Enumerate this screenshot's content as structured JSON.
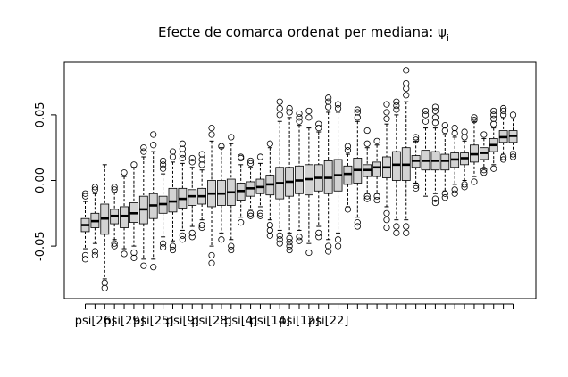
{
  "chart_data": {
    "type": "boxplot",
    "title": "Efecte de comarca ordenat per mediana:  ψ",
    "title_subscript": "i",
    "xlabel": "",
    "ylabel": "",
    "ylim": [
      -0.09,
      0.09
    ],
    "yticks": [
      -0.05,
      0.0,
      0.05
    ],
    "ytick_labels": [
      "-0.05",
      "0.00",
      "0.05"
    ],
    "x_tick_labels": [
      "psi[26]",
      "psi[29]",
      "psi[25]",
      "psi[9]",
      "psi[28]",
      "psi[4]",
      "psi[14]",
      "psi[12]",
      "psi[22]"
    ],
    "x_tick_label_positions": [
      1,
      4,
      7,
      10,
      13,
      16,
      19,
      22,
      25
    ],
    "box_fill": "#d3d3d3",
    "boxes": [
      {
        "q1": -0.039,
        "median": -0.034,
        "q3": -0.029,
        "lo": -0.052,
        "hi": -0.016,
        "out": [
          -0.057,
          -0.06,
          -0.012,
          -0.01
        ]
      },
      {
        "q1": -0.036,
        "median": -0.031,
        "q3": -0.025,
        "lo": -0.048,
        "hi": -0.01,
        "out": [
          -0.054,
          -0.057,
          -0.007,
          -0.005
        ]
      },
      {
        "q1": -0.041,
        "median": -0.029,
        "q3": -0.018,
        "lo": -0.075,
        "hi": 0.012,
        "out": [
          -0.082,
          -0.078
        ]
      },
      {
        "q1": -0.033,
        "median": -0.027,
        "q3": -0.022,
        "lo": -0.045,
        "hi": -0.009,
        "out": [
          -0.048,
          -0.05,
          -0.007,
          -0.005
        ]
      },
      {
        "q1": -0.036,
        "median": -0.027,
        "q3": -0.02,
        "lo": -0.052,
        "hi": 0.003,
        "out": [
          -0.056,
          0.006
        ]
      },
      {
        "q1": -0.032,
        "median": -0.025,
        "q3": -0.017,
        "lo": -0.05,
        "hi": 0.01,
        "out": [
          -0.055,
          -0.059,
          0.012
        ]
      },
      {
        "q1": -0.033,
        "median": -0.022,
        "q3": -0.012,
        "lo": -0.06,
        "hi": 0.018,
        "out": [
          -0.065,
          0.022,
          0.025
        ]
      },
      {
        "q1": -0.029,
        "median": -0.019,
        "q3": -0.01,
        "lo": -0.06,
        "hi": 0.022,
        "out": [
          -0.066,
          0.027,
          0.035
        ]
      },
      {
        "q1": -0.025,
        "median": -0.018,
        "q3": -0.012,
        "lo": -0.043,
        "hi": 0.005,
        "out": [
          -0.048,
          -0.051,
          0.009,
          0.012,
          0.015
        ]
      },
      {
        "q1": -0.024,
        "median": -0.016,
        "q3": -0.006,
        "lo": -0.046,
        "hi": 0.014,
        "out": [
          -0.05,
          -0.053,
          0.018,
          0.022
        ]
      },
      {
        "q1": -0.021,
        "median": -0.014,
        "q3": -0.006,
        "lo": -0.038,
        "hi": 0.013,
        "out": [
          -0.042,
          -0.045,
          0.017,
          0.02,
          0.024,
          0.028
        ]
      },
      {
        "q1": -0.019,
        "median": -0.012,
        "q3": -0.007,
        "lo": -0.035,
        "hi": 0.01,
        "out": [
          -0.04,
          -0.043,
          0.014,
          0.017
        ]
      },
      {
        "q1": -0.018,
        "median": -0.012,
        "q3": -0.006,
        "lo": -0.03,
        "hi": 0.008,
        "out": [
          -0.034,
          -0.036,
          0.012,
          0.016,
          0.02
        ]
      },
      {
        "q1": -0.02,
        "median": -0.01,
        "q3": 0.0,
        "lo": -0.05,
        "hi": 0.03,
        "out": [
          -0.057,
          -0.063,
          0.035,
          0.04
        ]
      },
      {
        "q1": -0.019,
        "median": -0.01,
        "q3": 0.0,
        "lo": -0.04,
        "hi": 0.025,
        "out": [
          -0.045,
          0.026
        ]
      },
      {
        "q1": -0.019,
        "median": -0.009,
        "q3": 0.001,
        "lo": -0.045,
        "hi": 0.028,
        "out": [
          -0.05,
          -0.053,
          0.033
        ]
      },
      {
        "q1": -0.015,
        "median": -0.008,
        "q3": -0.002,
        "lo": -0.028,
        "hi": 0.012,
        "out": [
          -0.032,
          0.017,
          0.018
        ]
      },
      {
        "q1": -0.012,
        "median": -0.006,
        "q3": -0.001,
        "lo": -0.022,
        "hi": 0.01,
        "out": [
          -0.025,
          -0.027,
          0.013,
          0.015
        ]
      },
      {
        "q1": -0.01,
        "median": -0.005,
        "q3": 0.001,
        "lo": -0.02,
        "hi": 0.013,
        "out": [
          -0.025,
          -0.027,
          0.018
        ]
      },
      {
        "q1": -0.011,
        "median": -0.003,
        "q3": 0.004,
        "lo": -0.03,
        "hi": 0.025,
        "out": [
          -0.034,
          -0.038,
          -0.042,
          0.028
        ]
      },
      {
        "q1": -0.014,
        "median": -0.002,
        "q3": 0.01,
        "lo": -0.038,
        "hi": 0.045,
        "out": [
          -0.042,
          -0.045,
          -0.048,
          0.05,
          0.055,
          0.06
        ]
      },
      {
        "q1": -0.012,
        "median": -0.001,
        "q3": 0.01,
        "lo": -0.04,
        "hi": 0.048,
        "out": [
          -0.044,
          -0.047,
          -0.05,
          -0.053,
          0.052,
          0.055
        ]
      },
      {
        "q1": -0.01,
        "median": 0.0,
        "q3": 0.011,
        "lo": -0.038,
        "hi": 0.042,
        "out": [
          -0.043,
          -0.046,
          0.045,
          0.048,
          0.051
        ]
      },
      {
        "q1": -0.011,
        "median": 0.001,
        "q3": 0.012,
        "lo": -0.048,
        "hi": 0.04,
        "out": [
          -0.055,
          0.048,
          0.053
        ]
      },
      {
        "q1": -0.008,
        "median": 0.002,
        "q3": 0.012,
        "lo": -0.035,
        "hi": 0.037,
        "out": [
          -0.04,
          -0.043,
          0.04,
          0.043
        ]
      },
      {
        "q1": -0.01,
        "median": 0.002,
        "q3": 0.015,
        "lo": -0.045,
        "hi": 0.052,
        "out": [
          -0.05,
          -0.054,
          0.056,
          0.06,
          0.063
        ]
      },
      {
        "q1": -0.008,
        "median": 0.004,
        "q3": 0.016,
        "lo": -0.04,
        "hi": 0.052,
        "out": [
          -0.045,
          -0.05,
          0.055,
          0.058
        ]
      },
      {
        "q1": -0.003,
        "median": 0.005,
        "q3": 0.011,
        "lo": -0.02,
        "hi": 0.02,
        "out": [
          -0.022,
          0.023,
          0.026
        ]
      },
      {
        "q1": -0.002,
        "median": 0.008,
        "q3": 0.017,
        "lo": -0.028,
        "hi": 0.045,
        "out": [
          -0.032,
          -0.035,
          0.048,
          0.052,
          0.054
        ]
      },
      {
        "q1": 0.003,
        "median": 0.008,
        "q3": 0.012,
        "lo": -0.01,
        "hi": 0.025,
        "out": [
          -0.012,
          -0.014,
          0.028,
          0.038
        ]
      },
      {
        "q1": 0.003,
        "median": 0.01,
        "q3": 0.014,
        "lo": -0.01,
        "hi": 0.027,
        "out": [
          -0.012,
          -0.015,
          0.03
        ]
      },
      {
        "q1": 0.002,
        "median": 0.01,
        "q3": 0.018,
        "lo": -0.02,
        "hi": 0.043,
        "out": [
          -0.025,
          -0.03,
          -0.036,
          0.047,
          0.052,
          0.058
        ]
      },
      {
        "q1": 0.0,
        "median": 0.012,
        "q3": 0.022,
        "lo": -0.03,
        "hi": 0.05,
        "out": [
          -0.035,
          -0.04,
          0.054,
          0.057,
          0.06
        ]
      },
      {
        "q1": 0.0,
        "median": 0.012,
        "q3": 0.025,
        "lo": -0.03,
        "hi": 0.06,
        "out": [
          -0.035,
          -0.04,
          0.065,
          0.07,
          0.074,
          0.084
        ]
      },
      {
        "q1": 0.01,
        "median": 0.015,
        "q3": 0.019,
        "lo": -0.002,
        "hi": 0.03,
        "out": [
          -0.004,
          -0.006,
          0.031,
          0.033
        ]
      },
      {
        "q1": 0.008,
        "median": 0.015,
        "q3": 0.023,
        "lo": -0.012,
        "hi": 0.04,
        "out": [
          0.045,
          0.05,
          0.053
        ]
      },
      {
        "q1": 0.008,
        "median": 0.015,
        "q3": 0.022,
        "lo": -0.01,
        "hi": 0.04,
        "out": [
          -0.014,
          -0.017,
          0.044,
          0.048,
          0.053,
          0.056
        ]
      },
      {
        "q1": 0.008,
        "median": 0.015,
        "q3": 0.02,
        "lo": -0.008,
        "hi": 0.035,
        "out": [
          -0.01,
          -0.013,
          0.038,
          0.042
        ]
      },
      {
        "q1": 0.01,
        "median": 0.016,
        "q3": 0.021,
        "lo": -0.003,
        "hi": 0.033,
        "out": [
          -0.007,
          -0.01,
          0.036,
          0.04
        ]
      },
      {
        "q1": 0.012,
        "median": 0.017,
        "q3": 0.021,
        "lo": 0.0,
        "hi": 0.03,
        "out": [
          -0.003,
          -0.005,
          0.033,
          0.037
        ]
      },
      {
        "q1": 0.014,
        "median": 0.02,
        "q3": 0.027,
        "lo": 0.003,
        "hi": 0.045,
        "out": [
          -0.001,
          0.046,
          0.048
        ]
      },
      {
        "q1": 0.016,
        "median": 0.021,
        "q3": 0.025,
        "lo": 0.009,
        "hi": 0.032,
        "out": [
          0.006,
          0.008,
          0.035
        ]
      },
      {
        "q1": 0.022,
        "median": 0.027,
        "q3": 0.032,
        "lo": 0.012,
        "hi": 0.04,
        "out": [
          0.009,
          0.043,
          0.047,
          0.05,
          0.053
        ]
      },
      {
        "q1": 0.029,
        "median": 0.033,
        "q3": 0.038,
        "lo": 0.02,
        "hi": 0.048,
        "out": [
          0.016,
          0.018,
          0.05,
          0.053,
          0.055
        ]
      },
      {
        "q1": 0.029,
        "median": 0.034,
        "q3": 0.038,
        "lo": 0.022,
        "hi": 0.047,
        "out": [
          0.018,
          0.02,
          0.05
        ]
      }
    ]
  }
}
